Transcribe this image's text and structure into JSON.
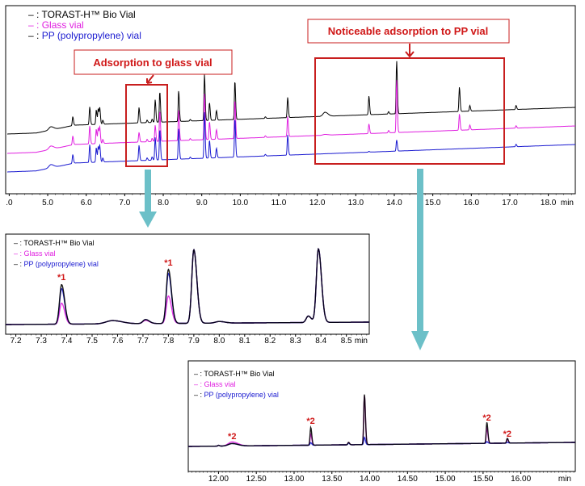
{
  "colors": {
    "torast": "#000000",
    "glass": "#e020e0",
    "pp": "#1a1ad0",
    "callout": "#c81e1e",
    "arrow": "#6cc0c8"
  },
  "legend": [
    {
      "key": "torast",
      "prefix": "– : ",
      "label": "TORAST-H™ Bio Vial"
    },
    {
      "key": "glass",
      "prefix": "– : ",
      "label": "Glass vial"
    },
    {
      "key": "pp",
      "prefix": "– : ",
      "label": "PP (polypropylene) vial"
    }
  ],
  "callouts": {
    "glass": "Adsorption to glass vial",
    "pp": "Noticeable adsorption to PP vial"
  },
  "chart_data": [
    {
      "type": "line",
      "title": "",
      "xlabel": "min",
      "xlim": [
        3.95,
        18.7
      ],
      "x_ticks": [
        ".0",
        "5.0",
        "6.0",
        "7.0",
        "8.0",
        "9.0",
        "10.0",
        "11.0",
        "12.0",
        "13.0",
        "14.0",
        "15.0",
        "16.0",
        "17.0",
        "18.0"
      ],
      "x_tick_values": [
        4,
        5,
        6,
        7,
        8,
        9,
        10,
        11,
        12,
        13,
        14,
        15,
        16,
        17,
        18
      ],
      "stacked_offset": true,
      "series_order": [
        "torast",
        "glass",
        "pp"
      ],
      "peaks": [
        {
          "t": 5.08,
          "h": [
            4,
            4,
            4
          ],
          "w": 0.05
        },
        {
          "t": 5.65,
          "h": [
            11,
            11,
            11
          ]
        },
        {
          "t": 6.09,
          "h": [
            22,
            22,
            22
          ]
        },
        {
          "t": 6.26,
          "h": [
            18,
            18,
            18
          ]
        },
        {
          "t": 6.31,
          "h": [
            19,
            19,
            19
          ]
        },
        {
          "t": 6.35,
          "h": [
            20,
            20,
            20
          ]
        },
        {
          "t": 6.43,
          "h": [
            5,
            5,
            5
          ]
        },
        {
          "t": 7.37,
          "h": [
            19,
            12,
            19
          ]
        },
        {
          "t": 7.58,
          "h": [
            3,
            3,
            3
          ]
        },
        {
          "t": 7.71,
          "h": [
            4,
            4,
            4
          ]
        },
        {
          "t": 7.79,
          "h": [
            28,
            20,
            28
          ]
        },
        {
          "t": 7.91,
          "h": [
            38,
            38,
            38
          ]
        },
        {
          "t": 8.4,
          "h": [
            38,
            38,
            38
          ]
        },
        {
          "t": 8.7,
          "h": [
            2,
            2,
            2
          ]
        },
        {
          "t": 9.07,
          "h": [
            57,
            57,
            57
          ]
        },
        {
          "t": 9.2,
          "h": [
            22,
            22,
            22
          ]
        },
        {
          "t": 9.38,
          "h": [
            12,
            12,
            12
          ]
        },
        {
          "t": 9.86,
          "h": [
            48,
            48,
            48
          ]
        },
        {
          "t": 10.65,
          "h": [
            2,
            2,
            2
          ]
        },
        {
          "t": 11.23,
          "h": [
            25,
            25,
            25
          ]
        },
        {
          "t": 12.2,
          "h": [
            5,
            1,
            0
          ],
          "w": 0.05
        },
        {
          "t": 13.34,
          "h": [
            23,
            12,
            1
          ]
        },
        {
          "t": 13.85,
          "h": [
            3,
            3,
            0
          ]
        },
        {
          "t": 14.06,
          "h": [
            66,
            66,
            14
          ]
        },
        {
          "t": 15.69,
          "h": [
            30,
            20,
            0
          ]
        },
        {
          "t": 15.96,
          "h": [
            7,
            6,
            0
          ]
        },
        {
          "t": 17.16,
          "h": [
            5,
            3,
            3
          ]
        }
      ]
    },
    {
      "type": "line",
      "title": "",
      "xlabel": "min",
      "xlim": [
        7.16,
        8.59
      ],
      "x_ticks": [
        "7.2",
        "7.3",
        "7.4",
        "7.5",
        "7.6",
        "7.7",
        "7.8",
        "7.9",
        "8.0",
        "8.1",
        "8.2",
        "8.3",
        "8.4",
        "8.5"
      ],
      "x_tick_values": [
        7.2,
        7.3,
        7.4,
        7.5,
        7.6,
        7.7,
        7.8,
        7.9,
        8.0,
        8.1,
        8.2,
        8.3,
        8.4,
        8.5
      ],
      "series_order": [
        "glass",
        "pp",
        "torast"
      ],
      "annotations": [
        {
          "t": 7.38,
          "label": "*1"
        },
        {
          "t": 7.8,
          "label": "*1"
        }
      ],
      "peaks": [
        {
          "t": 7.38,
          "h": [
            49,
            26,
            44
          ]
        },
        {
          "t": 7.58,
          "h": [
            4,
            4,
            4
          ],
          "w": 0.025
        },
        {
          "t": 7.71,
          "h": [
            5,
            4,
            5
          ],
          "w": 0.01
        },
        {
          "t": 7.8,
          "h": [
            67,
            34,
            62
          ]
        },
        {
          "t": 7.9,
          "h": [
            91,
            91,
            91
          ]
        },
        {
          "t": 8.0,
          "h": [
            2,
            2,
            2
          ],
          "w": 0.015
        },
        {
          "t": 8.35,
          "h": [
            8,
            8,
            8
          ]
        },
        {
          "t": 8.39,
          "h": [
            91,
            91,
            91
          ]
        }
      ]
    },
    {
      "type": "line",
      "title": "",
      "xlabel": "min",
      "xlim": [
        11.6,
        16.72
      ],
      "x_ticks": [
        "12.00",
        "12.50",
        "13.00",
        "13.50",
        "14.00",
        "14.50",
        "15.00",
        "15.50",
        "16.00"
      ],
      "x_tick_values": [
        12,
        12.5,
        13,
        13.5,
        14,
        14.5,
        15,
        15.5,
        16
      ],
      "series_order": [
        "glass",
        "pp",
        "torast"
      ],
      "annotations": [
        {
          "t": 12.18,
          "label": "*2"
        },
        {
          "t": 13.22,
          "label": "*2"
        },
        {
          "t": 15.55,
          "label": "*2"
        },
        {
          "t": 15.82,
          "label": "*2"
        }
      ],
      "peaks": [
        {
          "t": 12.0,
          "h": [
            1,
            1,
            1
          ]
        },
        {
          "t": 12.18,
          "h": [
            3,
            5,
            3
          ],
          "w": 0.05
        },
        {
          "t": 13.22,
          "h": [
            22,
            14,
            3
          ]
        },
        {
          "t": 13.72,
          "h": [
            3,
            3,
            2
          ]
        },
        {
          "t": 13.93,
          "h": [
            62,
            60,
            9
          ]
        },
        {
          "t": 15.55,
          "h": [
            26,
            19,
            2
          ]
        },
        {
          "t": 15.82,
          "h": [
            6,
            5,
            1
          ]
        }
      ]
    }
  ]
}
